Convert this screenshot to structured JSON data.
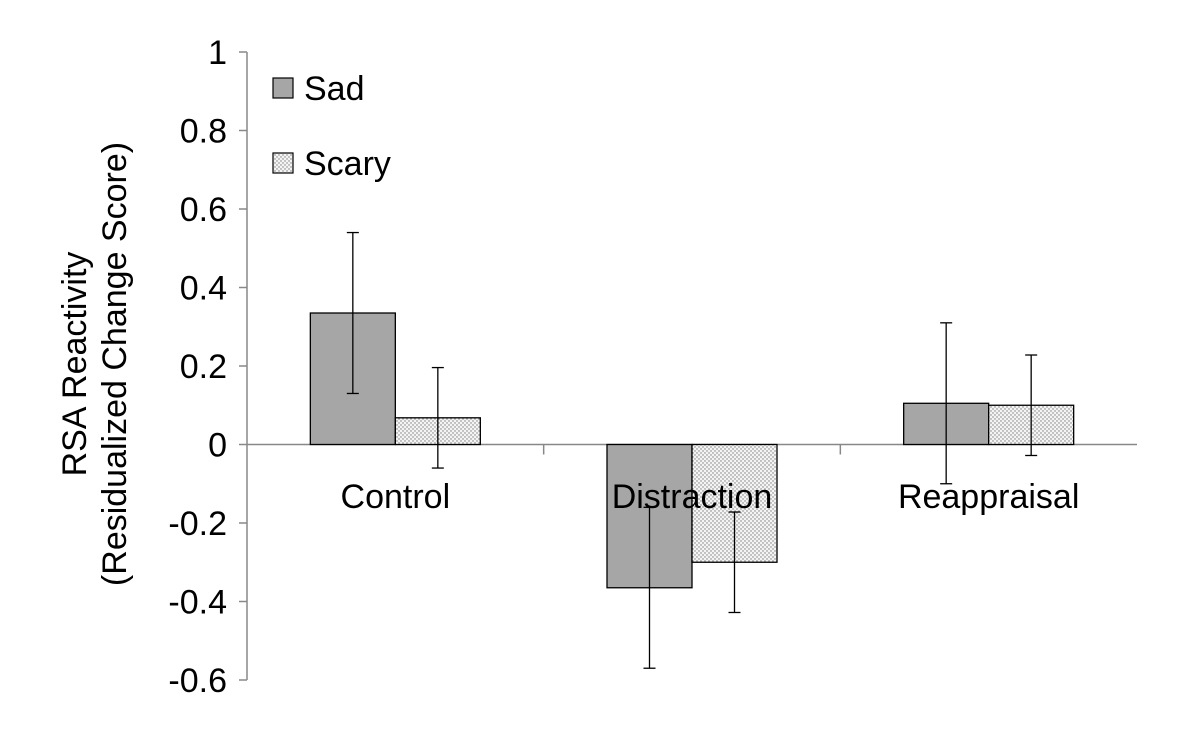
{
  "chart_data": {
    "type": "bar",
    "categories": [
      "Control",
      "Distraction",
      "Reappraisal"
    ],
    "series": [
      {
        "name": "Sad",
        "values": [
          0.335,
          -0.365,
          0.105
        ],
        "errors": [
          0.205,
          0.205,
          0.205
        ],
        "color": "#a6a6a6",
        "pattern": "solid"
      },
      {
        "name": "Scary",
        "values": [
          0.068,
          -0.3,
          0.1
        ],
        "errors": [
          0.128,
          0.128,
          0.128
        ],
        "color": "#f2f2f2",
        "pattern": "dotted"
      }
    ],
    "ylabel_line1": "RSA Reactivity",
    "ylabel_line2": "(Residualized Change Score)",
    "xlabel": "",
    "ylim": [
      -0.6,
      1
    ],
    "yticks": [
      "1",
      "0.8",
      "0.6",
      "0.4",
      "0.2",
      "0",
      "-0.2",
      "-0.4",
      "-0.6"
    ],
    "ytick_values": [
      1,
      0.8,
      0.6,
      0.4,
      0.2,
      0,
      -0.2,
      -0.4,
      -0.6
    ],
    "grid": false,
    "legend_position": "top-left"
  }
}
